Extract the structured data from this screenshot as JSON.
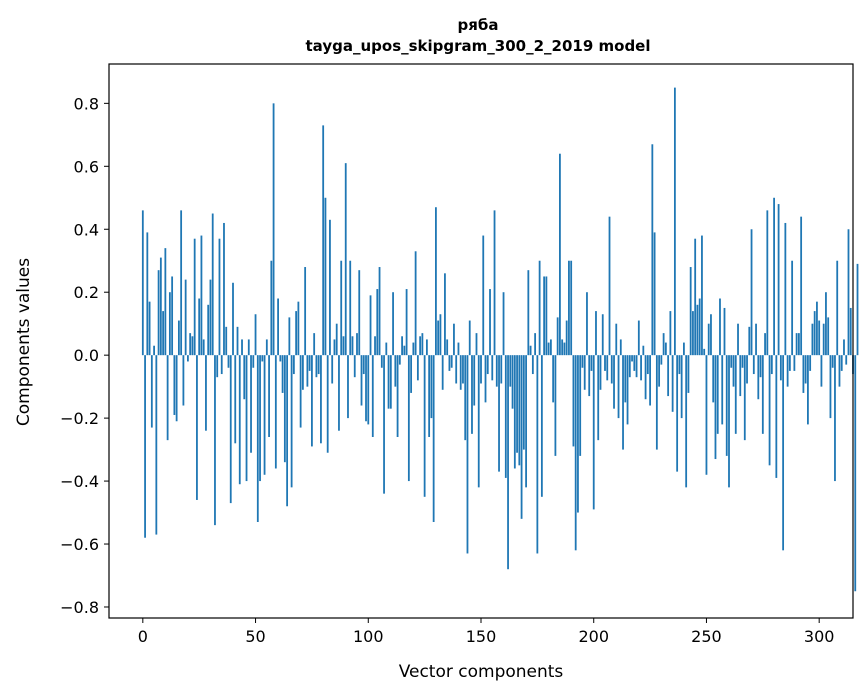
{
  "chart_data": {
    "type": "bar",
    "title": "ряба",
    "subtitle": "tayga_upos_skipgram_300_2_2019 model",
    "xlabel": "Vector components",
    "ylabel": "Components values",
    "xlim": [
      -15,
      315
    ],
    "ylim": [
      -0.835,
      0.925
    ],
    "xticks": [
      0,
      50,
      100,
      150,
      200,
      250,
      300
    ],
    "yticks": [
      -0.8,
      -0.6,
      -0.4,
      -0.2,
      0.0,
      0.2,
      0.4,
      0.6,
      0.8
    ],
    "xtick_labels": [
      "0",
      "50",
      "100",
      "150",
      "200",
      "250",
      "300"
    ],
    "ytick_labels": [
      "−0.8",
      "−0.6",
      "−0.4",
      "−0.2",
      "0.0",
      "0.2",
      "0.4",
      "0.6",
      "0.8"
    ],
    "grid": false,
    "bar_color": "#1f77b4",
    "values": [
      0.46,
      -0.58,
      0.39,
      0.17,
      -0.23,
      0.03,
      -0.57,
      0.27,
      0.31,
      0.14,
      0.34,
      -0.27,
      0.2,
      0.25,
      -0.19,
      -0.21,
      0.11,
      0.46,
      -0.16,
      0.24,
      -0.02,
      0.07,
      0.06,
      0.37,
      -0.46,
      0.18,
      0.38,
      0.05,
      -0.24,
      0.16,
      0.24,
      0.45,
      -0.54,
      -0.07,
      0.37,
      -0.06,
      0.42,
      0.09,
      -0.04,
      -0.47,
      0.23,
      -0.28,
      0.09,
      -0.41,
      0.05,
      -0.14,
      -0.4,
      0.05,
      -0.31,
      -0.04,
      0.13,
      -0.53,
      -0.4,
      -0.02,
      -0.38,
      0.05,
      -0.26,
      0.3,
      0.8,
      -0.36,
      0.18,
      -0.02,
      -0.12,
      -0.34,
      -0.48,
      0.12,
      -0.42,
      -0.06,
      0.14,
      0.17,
      -0.23,
      -0.11,
      0.28,
      -0.1,
      -0.05,
      -0.29,
      0.07,
      -0.07,
      -0.06,
      -0.28,
      0.73,
      0.5,
      -0.31,
      0.43,
      -0.09,
      0.05,
      0.1,
      -0.24,
      0.3,
      0.06,
      0.61,
      -0.2,
      0.3,
      0.06,
      -0.07,
      0.07,
      0.27,
      -0.16,
      -0.06,
      -0.21,
      -0.22,
      0.19,
      -0.26,
      0.06,
      0.21,
      0.28,
      -0.04,
      -0.44,
      0.04,
      -0.17,
      -0.17,
      0.2,
      -0.1,
      -0.26,
      -0.03,
      0.06,
      0.03,
      0.21,
      -0.4,
      -0.12,
      0.04,
      0.33,
      -0.08,
      0.06,
      0.07,
      -0.45,
      0.05,
      -0.26,
      -0.2,
      -0.53,
      0.47,
      0.11,
      0.13,
      -0.11,
      0.26,
      0.05,
      -0.05,
      -0.04,
      0.1,
      -0.09,
      0.04,
      -0.11,
      -0.09,
      -0.27,
      -0.63,
      0.11,
      -0.25,
      -0.16,
      0.07,
      -0.42,
      -0.09,
      0.38,
      -0.15,
      -0.06,
      0.21,
      -0.08,
      0.46,
      -0.1,
      -0.37,
      -0.09,
      0.2,
      -0.39,
      -0.68,
      -0.1,
      -0.17,
      -0.36,
      -0.31,
      -0.35,
      -0.52,
      -0.3,
      -0.42,
      0.27,
      0.03,
      -0.06,
      0.07,
      -0.63,
      0.3,
      -0.45,
      0.25,
      0.25,
      0.04,
      0.05,
      -0.15,
      -0.32,
      0.12,
      0.64,
      0.05,
      0.04,
      0.11,
      0.3,
      0.3,
      -0.29,
      -0.62,
      -0.5,
      -0.32,
      -0.04,
      -0.11,
      0.2,
      -0.13,
      -0.05,
      -0.49,
      0.14,
      -0.27,
      -0.11,
      0.13,
      -0.05,
      -0.08,
      0.44,
      -0.09,
      -0.17,
      0.1,
      -0.2,
      0.05,
      -0.3,
      -0.15,
      -0.22,
      -0.07,
      -0.02,
      -0.05,
      -0.07,
      0.11,
      -0.08,
      0.03,
      -0.14,
      -0.06,
      -0.16,
      0.67,
      0.39,
      -0.3,
      -0.1,
      -0.03,
      0.07,
      0.04,
      -0.13,
      0.14,
      -0.18,
      0.85,
      -0.37,
      -0.06,
      -0.2,
      0.04,
      -0.42,
      -0.12,
      0.28,
      0.14,
      0.37,
      0.16,
      0.18,
      0.38,
      0.02,
      -0.38,
      0.1,
      0.13,
      -0.15,
      -0.33,
      -0.25,
      0.18,
      -0.22,
      0.15,
      -0.32,
      -0.42,
      -0.04,
      -0.1,
      -0.25,
      0.1,
      -0.13,
      -0.04,
      -0.27,
      -0.09,
      0.09,
      0.4,
      -0.06,
      0.1,
      -0.14,
      -0.07,
      -0.25,
      0.07,
      0.46,
      -0.35,
      -0.06,
      0.5,
      -0.39,
      0.48,
      -0.08,
      -0.62,
      0.42,
      -0.1,
      -0.05,
      0.3,
      -0.05,
      0.07,
      0.07,
      0.44,
      -0.12,
      -0.09,
      -0.22,
      -0.05,
      0.1,
      0.14,
      0.17,
      0.11,
      -0.1,
      0.1,
      0.2,
      0.12,
      -0.2,
      -0.04,
      -0.4,
      0.3,
      -0.1,
      -0.05,
      0.05,
      -0.03,
      0.4,
      0.15,
      -0.06,
      -0.75,
      0.29
    ]
  }
}
